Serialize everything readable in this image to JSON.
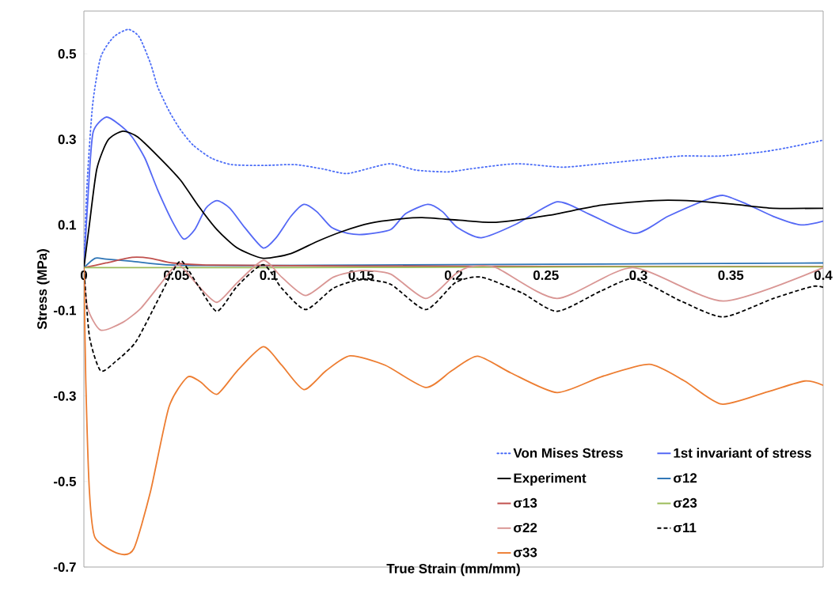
{
  "chart_data": {
    "type": "line",
    "xlabel": "True Strain (mm/mm)",
    "ylabel": "Stress (MPa)",
    "xlim": [
      0,
      0.4
    ],
    "ylim": [
      -0.7,
      0.6
    ],
    "xticks": [
      0,
      0.05,
      0.1,
      0.15,
      0.2,
      0.25,
      0.3,
      0.35,
      0.4
    ],
    "yticks": [
      0.5,
      0.3,
      0.1,
      -0.1,
      -0.3,
      -0.5,
      -0.7
    ],
    "legend": "bottom right",
    "series": [
      {
        "name": "Von Mises Stress",
        "color": "#4a6cf7",
        "line_style": "dotted",
        "x": [
          0,
          0.0017,
          0.0047,
          0.009,
          0.016,
          0.024,
          0.03,
          0.036,
          0.04,
          0.046,
          0.052,
          0.059,
          0.069,
          0.08,
          0.097,
          0.114,
          0.129,
          0.142,
          0.155,
          0.166,
          0.18,
          0.197,
          0.209,
          0.234,
          0.259,
          0.28,
          0.301,
          0.323,
          0.344,
          0.366,
          0.38,
          0.4
        ],
        "values": [
          0,
          0.194,
          0.38,
          0.491,
          0.539,
          0.557,
          0.539,
          0.478,
          0.422,
          0.367,
          0.324,
          0.287,
          0.256,
          0.241,
          0.239,
          0.241,
          0.231,
          0.22,
          0.233,
          0.243,
          0.228,
          0.224,
          0.231,
          0.243,
          0.235,
          0.243,
          0.252,
          0.261,
          0.261,
          0.27,
          0.28,
          0.298
        ]
      },
      {
        "name": "1st invariant of stress",
        "color": "#5468f5",
        "x": [
          0,
          0.0026,
          0.005,
          0.012,
          0.019,
          0.026,
          0.033,
          0.04,
          0.048,
          0.054,
          0.06,
          0.066,
          0.072,
          0.079,
          0.087,
          0.097,
          0.104,
          0.112,
          0.119,
          0.126,
          0.134,
          0.143,
          0.152,
          0.166,
          0.174,
          0.186,
          0.194,
          0.202,
          0.215,
          0.234,
          0.256,
          0.273,
          0.298,
          0.316,
          0.337,
          0.346,
          0.358,
          0.373,
          0.388,
          0.4
        ],
        "values": [
          0,
          0.194,
          0.317,
          0.352,
          0.335,
          0.306,
          0.256,
          0.181,
          0.107,
          0.067,
          0.089,
          0.139,
          0.157,
          0.139,
          0.094,
          0.046,
          0.07,
          0.12,
          0.148,
          0.131,
          0.094,
          0.08,
          0.078,
          0.089,
          0.126,
          0.148,
          0.131,
          0.094,
          0.07,
          0.102,
          0.154,
          0.126,
          0.08,
          0.12,
          0.159,
          0.169,
          0.15,
          0.12,
          0.1,
          0.109
        ]
      },
      {
        "name": "Experiment",
        "color": "#000000",
        "x": [
          0,
          0.003,
          0.007,
          0.013,
          0.021,
          0.029,
          0.04,
          0.052,
          0.062,
          0.072,
          0.083,
          0.097,
          0.112,
          0.126,
          0.14,
          0.155,
          0.169,
          0.183,
          0.203,
          0.223,
          0.251,
          0.28,
          0.309,
          0.33,
          0.352,
          0.373,
          0.4
        ],
        "values": [
          0,
          0.102,
          0.231,
          0.298,
          0.319,
          0.306,
          0.261,
          0.206,
          0.144,
          0.089,
          0.046,
          0.022,
          0.033,
          0.061,
          0.085,
          0.104,
          0.113,
          0.117,
          0.111,
          0.106,
          0.122,
          0.146,
          0.157,
          0.156,
          0.148,
          0.139,
          0.139
        ]
      },
      {
        "name": "σ12",
        "color": "#2e75b6",
        "x": [
          0,
          0.006,
          0.012,
          0.026,
          0.048,
          0.1,
          0.2,
          0.3,
          0.4
        ],
        "values": [
          0,
          0.022,
          0.02,
          0.015,
          0.006,
          0.005,
          0.007,
          0.009,
          0.011
        ]
      },
      {
        "name": "σ13",
        "color": "#c0504d",
        "x": [
          0,
          0.012,
          0.026,
          0.036,
          0.048,
          0.069,
          0.15,
          0.25,
          0.4
        ],
        "values": [
          0,
          0.011,
          0.024,
          0.022,
          0.011,
          0.006,
          0.004,
          0.003,
          0.003
        ]
      },
      {
        "name": "σ23",
        "color": "#9bbb59",
        "x": [
          0,
          0.1,
          0.2,
          0.3,
          0.4
        ],
        "values": [
          0,
          0,
          0.001,
          0.002,
          0.002
        ]
      },
      {
        "name": "σ22",
        "color": "#d99694",
        "x": [
          0,
          0.002,
          0.009,
          0.021,
          0.031,
          0.042,
          0.051,
          0.062,
          0.072,
          0.083,
          0.097,
          0.107,
          0.12,
          0.135,
          0.15,
          0.166,
          0.185,
          0.201,
          0.209,
          0.223,
          0.256,
          0.297,
          0.346,
          0.4
        ],
        "values": [
          0,
          -0.094,
          -0.146,
          -0.128,
          -0.094,
          -0.035,
          0.007,
          -0.043,
          -0.081,
          -0.035,
          0.017,
          -0.022,
          -0.065,
          -0.022,
          -0.007,
          -0.015,
          -0.072,
          -0.015,
          0.002,
          0,
          -0.072,
          0,
          -0.078,
          0
        ]
      },
      {
        "name": "σ11",
        "color": "#000000",
        "line_style": "dashed",
        "x": [
          0,
          0.003,
          0.009,
          0.017,
          0.028,
          0.04,
          0.048,
          0.053,
          0.062,
          0.072,
          0.083,
          0.097,
          0.107,
          0.12,
          0.135,
          0.15,
          0.166,
          0.185,
          0.201,
          0.215,
          0.237,
          0.256,
          0.28,
          0.298,
          0.323,
          0.346,
          0.373,
          0.394,
          0.4
        ],
        "values": [
          0,
          -0.161,
          -0.241,
          -0.22,
          -0.174,
          -0.076,
          -0.009,
          0.015,
          -0.043,
          -0.102,
          -0.043,
          0.007,
          -0.048,
          -0.098,
          -0.048,
          -0.028,
          -0.039,
          -0.098,
          -0.035,
          -0.022,
          -0.059,
          -0.102,
          -0.054,
          -0.026,
          -0.078,
          -0.115,
          -0.072,
          -0.044,
          -0.046
        ]
      },
      {
        "name": "σ33",
        "color": "#ed7d31",
        "x": [
          0,
          0.001,
          0.003,
          0.006,
          0.019,
          0.027,
          0.036,
          0.046,
          0.056,
          0.063,
          0.072,
          0.083,
          0.097,
          0.107,
          0.119,
          0.131,
          0.144,
          0.163,
          0.185,
          0.199,
          0.213,
          0.231,
          0.256,
          0.28,
          0.306,
          0.325,
          0.345,
          0.37,
          0.39,
          0.4
        ],
        "values": [
          0,
          -0.261,
          -0.524,
          -0.631,
          -0.669,
          -0.657,
          -0.524,
          -0.326,
          -0.256,
          -0.267,
          -0.296,
          -0.241,
          -0.185,
          -0.228,
          -0.285,
          -0.241,
          -0.206,
          -0.228,
          -0.28,
          -0.241,
          -0.207,
          -0.246,
          -0.292,
          -0.255,
          -0.226,
          -0.265,
          -0.319,
          -0.29,
          -0.265,
          -0.275
        ]
      }
    ]
  }
}
